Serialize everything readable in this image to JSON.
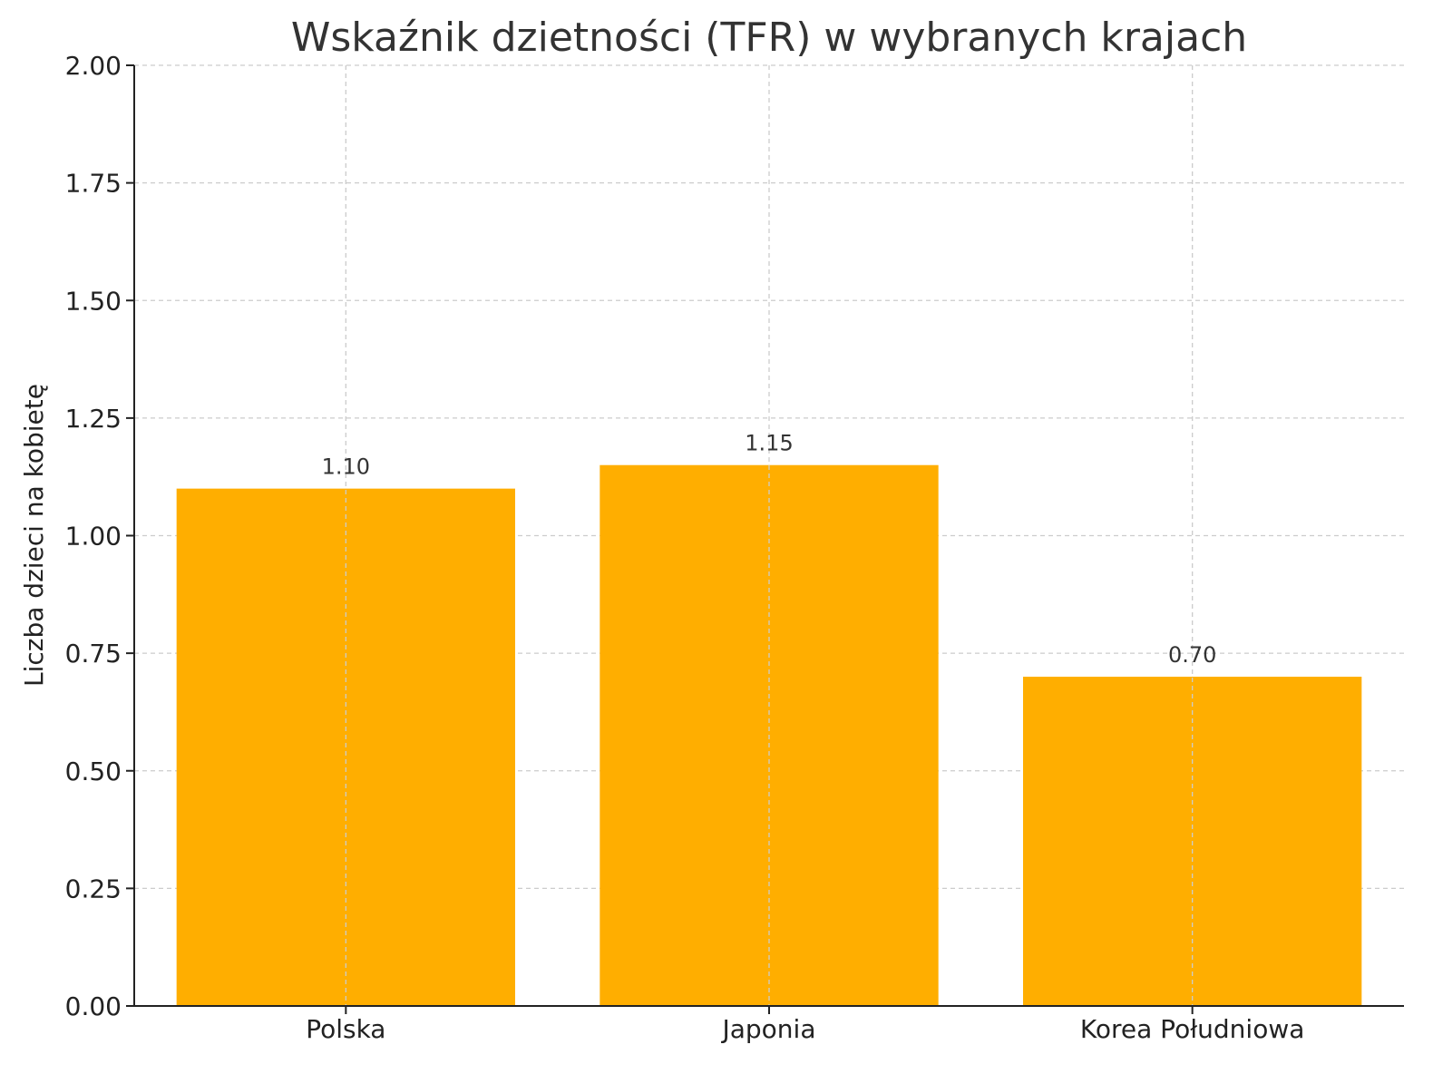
{
  "chart_data": {
    "type": "bar",
    "title": "Wskaźnik dzietności (TFR) w wybranych krajach",
    "xlabel": "",
    "ylabel": "Liczba dzieci na kobietę",
    "categories": [
      "Polska",
      "Japonia",
      "Korea Południowa"
    ],
    "values": [
      1.1,
      1.15,
      0.7
    ],
    "data_labels": [
      "1.10",
      "1.15",
      "0.70"
    ],
    "ylim": [
      0,
      2.0
    ],
    "yticks": [
      "0.00",
      "0.25",
      "0.50",
      "0.75",
      "1.00",
      "1.25",
      "1.50",
      "1.75",
      "2.00"
    ],
    "grid": true,
    "bar_color": "#FFAE00"
  }
}
